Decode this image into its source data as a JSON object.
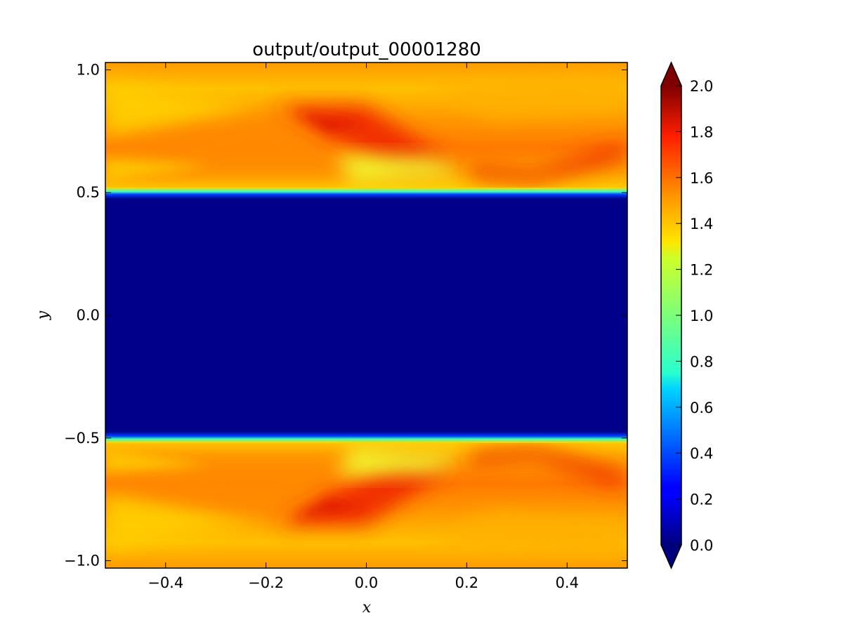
{
  "chart_data": {
    "type": "heatmap",
    "title": "output/output_00001280",
    "xlabel": "x",
    "ylabel": "y",
    "xlim": [
      -0.52,
      0.52
    ],
    "ylim": [
      -1.03,
      1.03
    ],
    "x_ticks": [
      -0.4,
      -0.2,
      0.0,
      0.2,
      0.4
    ],
    "x_tick_labels": [
      "−0.4",
      "−0.2",
      "0.0",
      "0.2",
      "0.4"
    ],
    "y_ticks": [
      1.0,
      0.5,
      0.0,
      -0.5,
      -1.0
    ],
    "y_tick_labels": [
      "1.0",
      "0.5",
      "0.0",
      "−0.5",
      "−1.0"
    ],
    "colormap": "jet",
    "colorbar": {
      "min": 0.0,
      "max": 2.0,
      "extend": "both",
      "ticks": [
        0.0,
        0.2,
        0.4,
        0.6,
        0.8,
        1.0,
        1.2,
        1.4,
        1.6,
        1.8,
        2.0
      ],
      "tick_labels": [
        "0.0",
        "0.2",
        "0.4",
        "0.6",
        "0.8",
        "1.0",
        "1.2",
        "1.4",
        "1.6",
        "1.8",
        "2.0"
      ]
    },
    "regions": [
      {
        "name": "upper-band",
        "y_range": [
          0.5,
          1.03
        ],
        "typical_value": 1.55
      },
      {
        "name": "central-band",
        "y_range": [
          -0.5,
          0.5
        ],
        "typical_value": 0.0
      },
      {
        "name": "lower-band",
        "y_range": [
          -1.03,
          -0.5
        ],
        "typical_value": 1.55
      }
    ],
    "grid": false
  }
}
